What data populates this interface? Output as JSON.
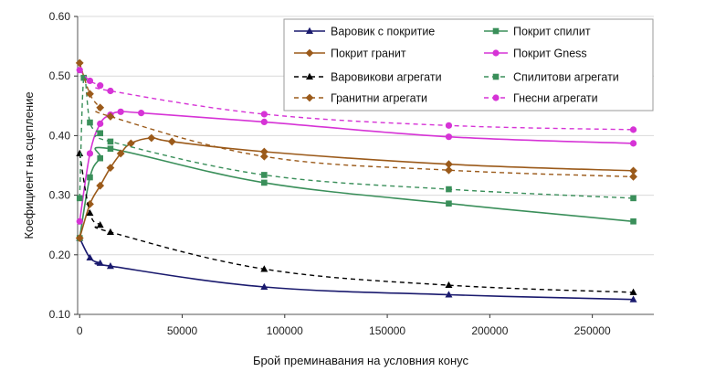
{
  "chart_data": {
    "type": "line",
    "xlabel": "Брой преминавания на условния конус",
    "ylabel": "Коефициент на сцепление",
    "xlim": [
      -1000,
      280000
    ],
    "ylim": [
      0.1,
      0.6
    ],
    "xticks": [
      0,
      50000,
      100000,
      150000,
      200000,
      250000
    ],
    "yticks": [
      0.1,
      0.2,
      0.3,
      0.4,
      0.5,
      0.6
    ],
    "xtick_labels": [
      "0",
      "50000",
      "100000",
      "150000",
      "200000",
      "250000"
    ],
    "ytick_labels": [
      "0.10",
      "0.20",
      "0.30",
      "0.40",
      "0.50",
      "0.60"
    ],
    "grid": "horizontal",
    "legend_position": "top-right",
    "series": [
      {
        "name": "Варовик с покритие",
        "color": "#1a1a6e",
        "dash": false,
        "marker": "triangle",
        "points": [
          [
            0,
            0.228
          ],
          [
            5000,
            0.195
          ],
          [
            10000,
            0.186
          ],
          [
            15000,
            0.181
          ],
          [
            90000,
            0.146
          ],
          [
            180000,
            0.133
          ],
          [
            270000,
            0.125
          ]
        ]
      },
      {
        "name": "Покрит спилит",
        "color": "#3a8f5a",
        "dash": false,
        "marker": "square",
        "points": [
          [
            0,
            0.228
          ],
          [
            5000,
            0.33
          ],
          [
            10000,
            0.362
          ],
          [
            15000,
            0.378
          ],
          [
            90000,
            0.321
          ],
          [
            180000,
            0.286
          ],
          [
            270000,
            0.256
          ]
        ]
      },
      {
        "name": "Покрит гранит",
        "color": "#9b5a1a",
        "dash": false,
        "marker": "diamond",
        "points": [
          [
            0,
            0.228
          ],
          [
            5000,
            0.285
          ],
          [
            10000,
            0.316
          ],
          [
            15000,
            0.346
          ],
          [
            20000,
            0.37
          ],
          [
            25000,
            0.387
          ],
          [
            35000,
            0.396
          ],
          [
            45000,
            0.39
          ],
          [
            90000,
            0.373
          ],
          [
            180000,
            0.352
          ],
          [
            270000,
            0.341
          ]
        ]
      },
      {
        "name": "Покрит Gness",
        "color": "#d633d6",
        "dash": false,
        "marker": "circle",
        "points": [
          [
            0,
            0.256
          ],
          [
            5000,
            0.37
          ],
          [
            10000,
            0.42
          ],
          [
            15000,
            0.435
          ],
          [
            20000,
            0.44
          ],
          [
            30000,
            0.438
          ],
          [
            90000,
            0.423
          ],
          [
            180000,
            0.398
          ],
          [
            270000,
            0.387
          ]
        ]
      },
      {
        "name": "Варовикови агрегати",
        "color": "#000000",
        "dash": true,
        "marker": "triangle",
        "points": [
          [
            0,
            0.37
          ],
          [
            5000,
            0.27
          ],
          [
            10000,
            0.25
          ],
          [
            15000,
            0.238
          ],
          [
            90000,
            0.176
          ],
          [
            180000,
            0.149
          ],
          [
            270000,
            0.137
          ]
        ]
      },
      {
        "name": "Спилитови агрегати",
        "color": "#3a8f5a",
        "dash": true,
        "marker": "square",
        "points": [
          [
            0,
            0.295
          ],
          [
            2000,
            0.497
          ],
          [
            5000,
            0.422
          ],
          [
            10000,
            0.404
          ],
          [
            15000,
            0.39
          ],
          [
            90000,
            0.334
          ],
          [
            180000,
            0.31
          ],
          [
            270000,
            0.295
          ]
        ]
      },
      {
        "name": "Гранитни агрегати",
        "color": "#9b5a1a",
        "dash": true,
        "marker": "diamond",
        "points": [
          [
            0,
            0.522
          ],
          [
            5000,
            0.47
          ],
          [
            10000,
            0.447
          ],
          [
            15000,
            0.432
          ],
          [
            90000,
            0.365
          ],
          [
            180000,
            0.342
          ],
          [
            270000,
            0.331
          ]
        ]
      },
      {
        "name": "Гнесни агрегати",
        "color": "#d633d6",
        "dash": true,
        "marker": "circle",
        "points": [
          [
            0,
            0.51
          ],
          [
            5000,
            0.492
          ],
          [
            10000,
            0.484
          ],
          [
            15000,
            0.475
          ],
          [
            90000,
            0.436
          ],
          [
            180000,
            0.417
          ],
          [
            270000,
            0.41
          ]
        ]
      }
    ]
  }
}
